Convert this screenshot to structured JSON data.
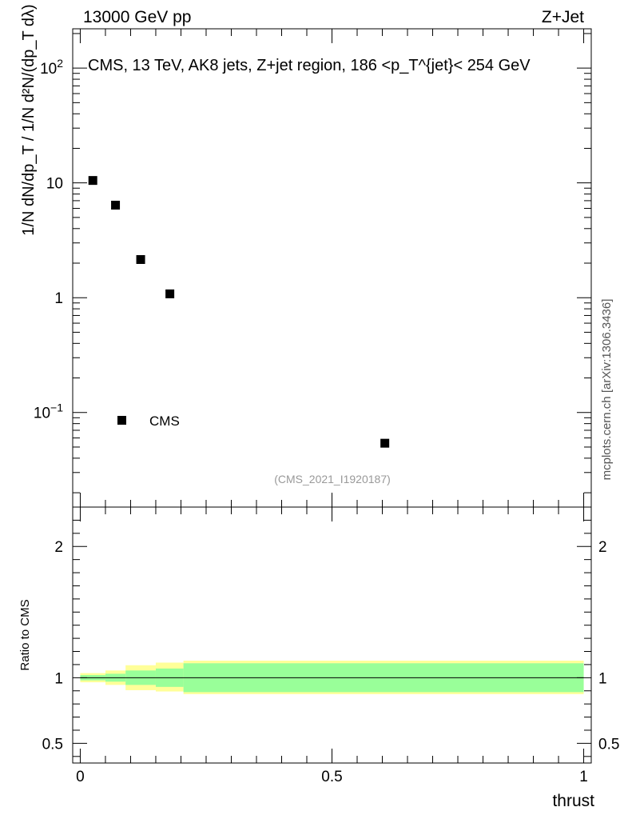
{
  "header": {
    "left": "13000 GeV pp",
    "right": "Z+Jet"
  },
  "side_label": "mcplots.cern.ch [arXiv:1306.3436]",
  "watermark": "(CMS_2021_I1920187)",
  "colors": {
    "data_marker": "#000000",
    "band_inner": "#99ff99",
    "band_outer": "#ffff99",
    "reference_line": "#000000",
    "watermark": "#999999"
  },
  "chart_data": [
    {
      "type": "scatter",
      "title": "CMS, 13 TeV, AK8 jets, Z+jet region, 186 <p_T^{jet}< 254 GeV",
      "xlabel": "",
      "ylabel": "1/N dN/dp_T  /  1/N d²N/(dp_T dλ)",
      "yscale": "log",
      "ylim": [
        0.015,
        220
      ],
      "xlim": [
        -0.015,
        1.015
      ],
      "y_tick_labels": [
        "10^-1",
        "1",
        "10",
        "10^2"
      ],
      "y_tick_values": [
        0.1,
        1,
        10,
        100
      ],
      "legend": {
        "position": "left-bottom",
        "entries": [
          "CMS"
        ]
      },
      "series": [
        {
          "name": "CMS",
          "marker": "square",
          "x": [
            0.025,
            0.07,
            0.12,
            0.178,
            0.605
          ],
          "y": [
            10.5,
            6.4,
            2.15,
            1.08,
            0.054
          ]
        }
      ]
    },
    {
      "type": "area",
      "xlabel": "thrust",
      "ylabel": "Ratio to CMS",
      "xlim": [
        -0.015,
        1.015
      ],
      "ylim": [
        0.35,
        2.3
      ],
      "x_tick_labels": [
        "0",
        "0.5",
        "1"
      ],
      "x_tick_values": [
        0,
        0.5,
        1
      ],
      "y_tick_labels": [
        "0.5",
        "1",
        "2"
      ],
      "y_tick_values": [
        0.5,
        1,
        2
      ],
      "reference_line": 1,
      "bins": [
        0,
        0.05,
        0.09,
        0.15,
        0.205,
        1.0
      ],
      "inner_band": {
        "low": [
          0.98,
          0.97,
          0.945,
          0.93,
          0.89
        ],
        "high": [
          1.02,
          1.03,
          1.055,
          1.07,
          1.11
        ]
      },
      "outer_band": {
        "low": [
          0.965,
          0.945,
          0.905,
          0.895,
          0.875
        ],
        "high": [
          1.035,
          1.055,
          1.095,
          1.115,
          1.13
        ]
      }
    }
  ]
}
